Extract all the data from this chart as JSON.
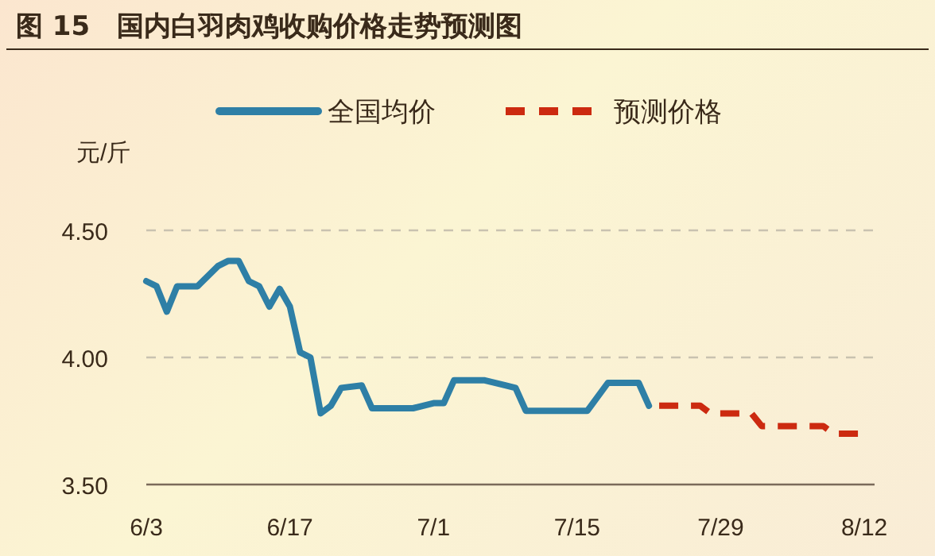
{
  "chart_data": {
    "type": "line",
    "title": "图 15　国内白羽肉鸡收购价格走势预测图",
    "ylabel": "元/斤",
    "xlim": [
      "--06-03",
      "--08-13"
    ],
    "xticks": [
      {
        "value": "--06-03",
        "label": "6/3"
      },
      {
        "value": "--06-17",
        "label": "6/17"
      },
      {
        "value": "--07-01",
        "label": "7/1"
      },
      {
        "value": "--07-15",
        "label": "7/15"
      },
      {
        "value": "--07-29",
        "label": "7/29"
      },
      {
        "value": "--08-12",
        "label": "8/12"
      }
    ],
    "ylim": [
      3.5,
      4.5
    ],
    "yticks": [
      {
        "value": 3.5,
        "label": "3.50"
      },
      {
        "value": 4.0,
        "label": "4.00"
      },
      {
        "value": 4.5,
        "label": "4.50"
      }
    ],
    "grid": "y",
    "legend": "top",
    "series": [
      {
        "name": "全国均价",
        "color": "#2e7fa6",
        "line_style": "solid",
        "x": [
          "--06-03",
          "--06-04",
          "--06-05",
          "--06-06",
          "--06-08",
          "--06-10",
          "--06-11",
          "--06-12",
          "--06-13",
          "--06-14",
          "--06-15",
          "--06-16",
          "--06-17",
          "--06-18",
          "--06-19",
          "--06-20",
          "--06-21",
          "--06-22",
          "--06-24",
          "--06-25",
          "--06-29",
          "--07-01",
          "--07-02",
          "--07-03",
          "--07-06",
          "--07-08",
          "--07-09",
          "--07-10",
          "--07-16",
          "--07-18",
          "--07-21",
          "--07-22"
        ],
        "values": [
          4.3,
          4.28,
          4.18,
          4.28,
          4.28,
          4.36,
          4.38,
          4.38,
          4.3,
          4.28,
          4.2,
          4.27,
          4.2,
          4.02,
          4.0,
          3.78,
          3.81,
          3.88,
          3.89,
          3.8,
          3.8,
          3.82,
          3.82,
          3.91,
          3.91,
          3.89,
          3.88,
          3.79,
          3.79,
          3.9,
          3.9,
          3.81
        ]
      },
      {
        "name": "预测价格",
        "color": "#cc2a10",
        "line_style": "dashed",
        "x": [
          "--07-23",
          "--07-27",
          "--07-28",
          "--08-01",
          "--08-02",
          "--08-08",
          "--08-09",
          "--08-12"
        ],
        "values": [
          3.81,
          3.81,
          3.78,
          3.78,
          3.73,
          3.73,
          3.7,
          3.7
        ]
      }
    ]
  }
}
